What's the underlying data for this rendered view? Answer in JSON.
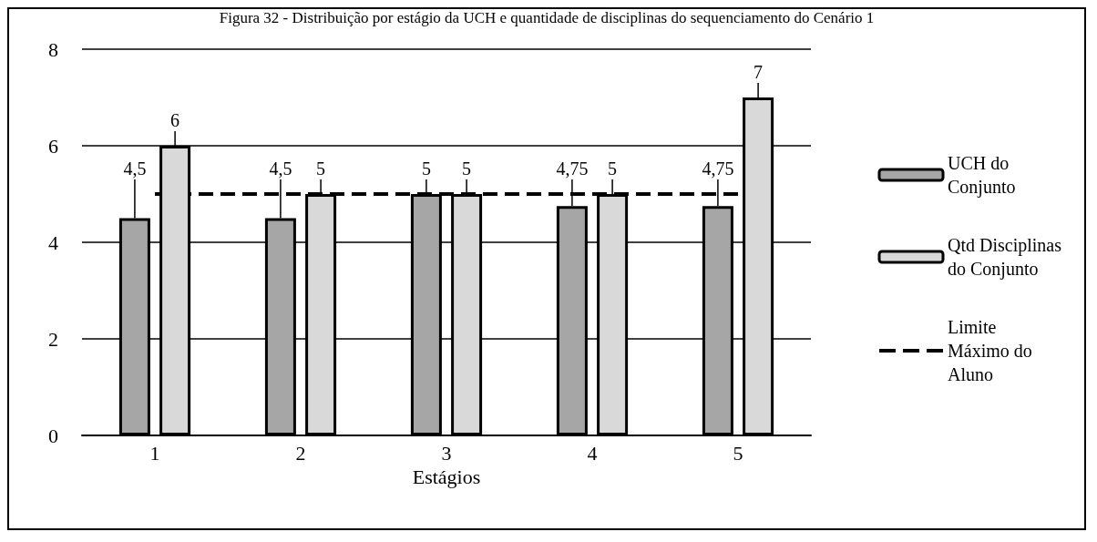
{
  "chart_data": {
    "type": "bar",
    "title": "Figura 32 - Distribuição por estágio da UCH e quantidade de disciplinas do sequenciamento do Cenário 1",
    "xlabel": "Estágios",
    "categories": [
      "1",
      "2",
      "3",
      "4",
      "5"
    ],
    "series": [
      {
        "name": "UCH do Conjunto",
        "color": "#a6a6a6",
        "values": [
          4.5,
          4.5,
          5,
          4.75,
          4.75
        ],
        "value_labels": [
          "4,5",
          "4,5",
          "5",
          "4,75",
          "4,75"
        ]
      },
      {
        "name": "Qtd Disciplinas do Conjunto",
        "color": "#d9d9d9",
        "values": [
          6,
          5,
          5,
          5,
          7
        ],
        "value_labels": [
          "6",
          "5",
          "5",
          "5",
          "7"
        ]
      },
      {
        "name": "Limite Máximo do Aluno",
        "type": "line",
        "color": "#000000",
        "line_style": "dashed",
        "values": [
          5,
          5,
          5,
          5,
          5
        ]
      }
    ],
    "ylim": [
      0,
      8
    ],
    "yticks": [
      0,
      2,
      4,
      6,
      8
    ],
    "grid": "y",
    "legend": "right",
    "marker": "none"
  }
}
